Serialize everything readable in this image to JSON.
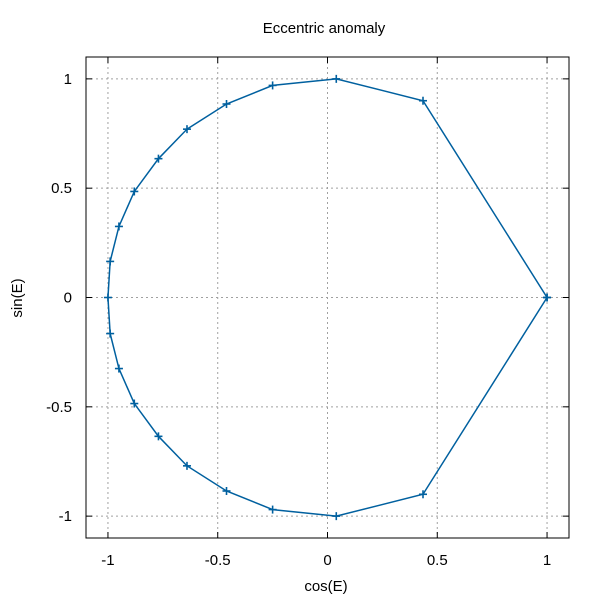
{
  "chart_data": {
    "type": "line",
    "title": "Eccentric anomaly",
    "xlabel": "cos(E)",
    "ylabel": "sin(E)",
    "xlim": [
      -1.1,
      1.1
    ],
    "ylim": [
      -1.1,
      1.1
    ],
    "xticks": [
      -1,
      -0.5,
      0,
      0.5,
      1
    ],
    "yticks": [
      -1,
      -0.5,
      0,
      0.5,
      1
    ],
    "xtick_labels": [
      "-1",
      "-0.5",
      "0",
      "0.5",
      "1"
    ],
    "ytick_labels": [
      "-1",
      "-0.5",
      "0",
      "0.5",
      "1"
    ],
    "grid": true,
    "color": "#00609f",
    "series": [
      {
        "x": [
          1.0,
          0.435,
          0.04,
          -0.25,
          -0.46,
          -0.64,
          -0.77,
          -0.88,
          -0.95,
          -0.99,
          -1.0,
          -0.99,
          -0.95,
          -0.88,
          -0.77,
          -0.64,
          -0.46,
          -0.25,
          0.04,
          0.435,
          1.0
        ],
        "y": [
          0.0,
          0.9,
          1.0,
          0.97,
          0.885,
          0.77,
          0.635,
          0.485,
          0.325,
          0.165,
          0.0,
          -0.165,
          -0.325,
          -0.485,
          -0.635,
          -0.77,
          -0.885,
          -0.97,
          -1.0,
          -0.9,
          0.0
        ]
      }
    ]
  }
}
